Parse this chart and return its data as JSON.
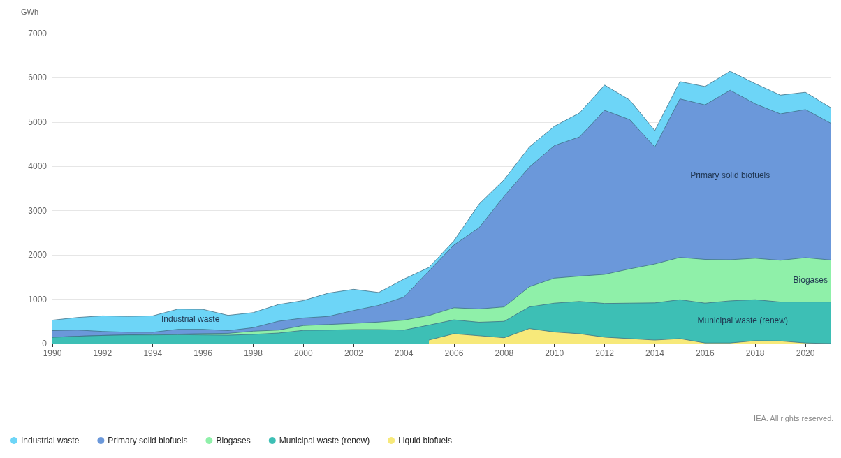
{
  "chart_data": {
    "type": "area",
    "stacked": true,
    "ylabel": "GWh",
    "x": [
      1990,
      1991,
      1992,
      1993,
      1994,
      1995,
      1996,
      1997,
      1998,
      1999,
      2000,
      2001,
      2002,
      2003,
      2004,
      2005,
      2006,
      2007,
      2008,
      2009,
      2010,
      2011,
      2012,
      2013,
      2014,
      2015,
      2016,
      2017,
      2018,
      2019,
      2020,
      2021
    ],
    "series": [
      {
        "name": "Liquid biofuels",
        "color": "#f7e97a",
        "values": [
          null,
          null,
          null,
          null,
          null,
          null,
          null,
          null,
          null,
          null,
          null,
          null,
          null,
          null,
          null,
          78,
          221,
          176,
          130,
          338,
          260,
          221,
          143,
          111,
          78,
          111,
          13,
          13,
          65,
          59,
          13,
          0
        ]
      },
      {
        "name": "Municipal waste (renew)",
        "color": "#3dbfb5",
        "values": [
          139,
          164,
          182,
          194,
          194,
          200,
          194,
          188,
          206,
          236,
          297,
          303,
          315,
          315,
          303,
          338,
          313,
          305,
          371,
          488,
          651,
          729,
          761,
          800,
          839,
          878,
          898,
          950,
          924,
          878,
          924,
          937
        ]
      },
      {
        "name": "Biogases",
        "color": "#8ff0a9",
        "values": [
          0,
          0,
          0,
          0,
          12,
          12,
          30,
          42,
          73,
          67,
          109,
          127,
          140,
          170,
          224,
          215,
          273,
          300,
          325,
          456,
          566,
          572,
          658,
          774,
          879,
          956,
          989,
          930,
          937,
          943,
          1002,
          950
        ]
      },
      {
        "name": "Primary solid biofuels",
        "color": "#6b98da",
        "values": [
          152,
          139,
          91,
          61,
          49,
          109,
          97,
          61,
          79,
          200,
          170,
          182,
          290,
          376,
          521,
          1009,
          1418,
          1834,
          2505,
          2700,
          2993,
          3143,
          3702,
          3370,
          2641,
          3579,
          3487,
          3826,
          3487,
          3305,
          3344,
          3090
        ]
      },
      {
        "name": "Industrial waste",
        "color": "#6dd5f7",
        "values": [
          236,
          285,
          351,
          357,
          369,
          455,
          449,
          345,
          339,
          376,
          394,
          527,
          479,
          291,
          407,
          78,
          98,
          534,
          371,
          455,
          436,
          540,
          572,
          443,
          371,
          390,
          416,
          429,
          456,
          423,
          390,
          352
        ]
      }
    ],
    "xlim": [
      1990,
      2021
    ],
    "xticks": [
      1990,
      1992,
      1994,
      1996,
      1998,
      2000,
      2002,
      2004,
      2006,
      2008,
      2010,
      2012,
      2014,
      2016,
      2018,
      2020
    ],
    "ylim": [
      0,
      7000
    ],
    "yticks": [
      0,
      1000,
      2000,
      3000,
      4000,
      5000,
      6000,
      7000
    ],
    "grid": "y",
    "legend": "bottom",
    "marker": "none",
    "annotations": [
      "IEA. All rights reserved."
    ]
  }
}
